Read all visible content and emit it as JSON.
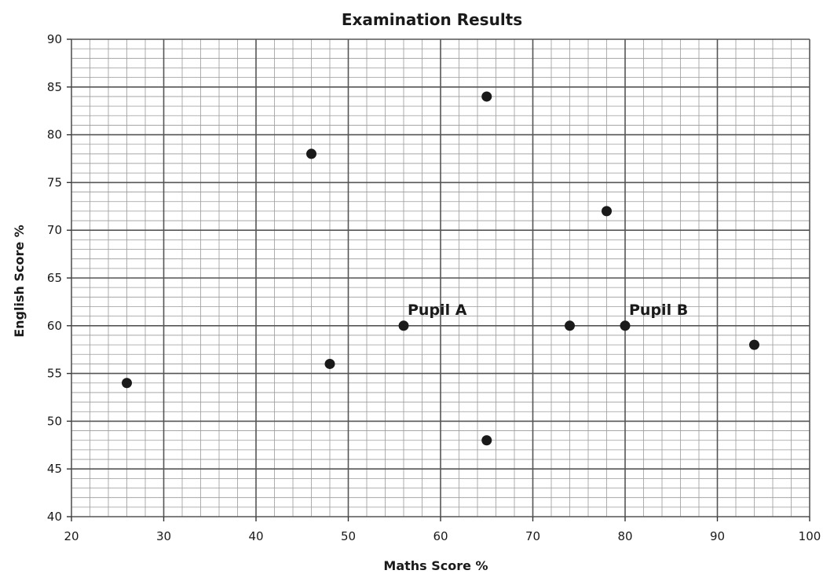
{
  "chart_data": {
    "type": "scatter",
    "title": "Examination Results",
    "xlabel": "Maths Score %",
    "ylabel": "English Score %",
    "xlim": [
      20,
      100
    ],
    "ylim": [
      40,
      90
    ],
    "x_ticks": [
      20,
      30,
      40,
      50,
      60,
      70,
      80,
      90,
      100
    ],
    "y_ticks": [
      40,
      45,
      50,
      55,
      60,
      65,
      70,
      75,
      80,
      85,
      90
    ],
    "grid": true,
    "points": [
      {
        "x": 26,
        "y": 54
      },
      {
        "x": 46,
        "y": 78
      },
      {
        "x": 48,
        "y": 56
      },
      {
        "x": 56,
        "y": 60,
        "label": "Pupil A"
      },
      {
        "x": 65,
        "y": 84
      },
      {
        "x": 65,
        "y": 48
      },
      {
        "x": 74,
        "y": 60
      },
      {
        "x": 78,
        "y": 72
      },
      {
        "x": 80,
        "y": 60,
        "label": "Pupil B"
      },
      {
        "x": 94,
        "y": 58
      }
    ],
    "colors": {
      "point": "#1a1a1a",
      "grid_major": "#555555",
      "grid_minor": "#9a9a9a"
    }
  }
}
